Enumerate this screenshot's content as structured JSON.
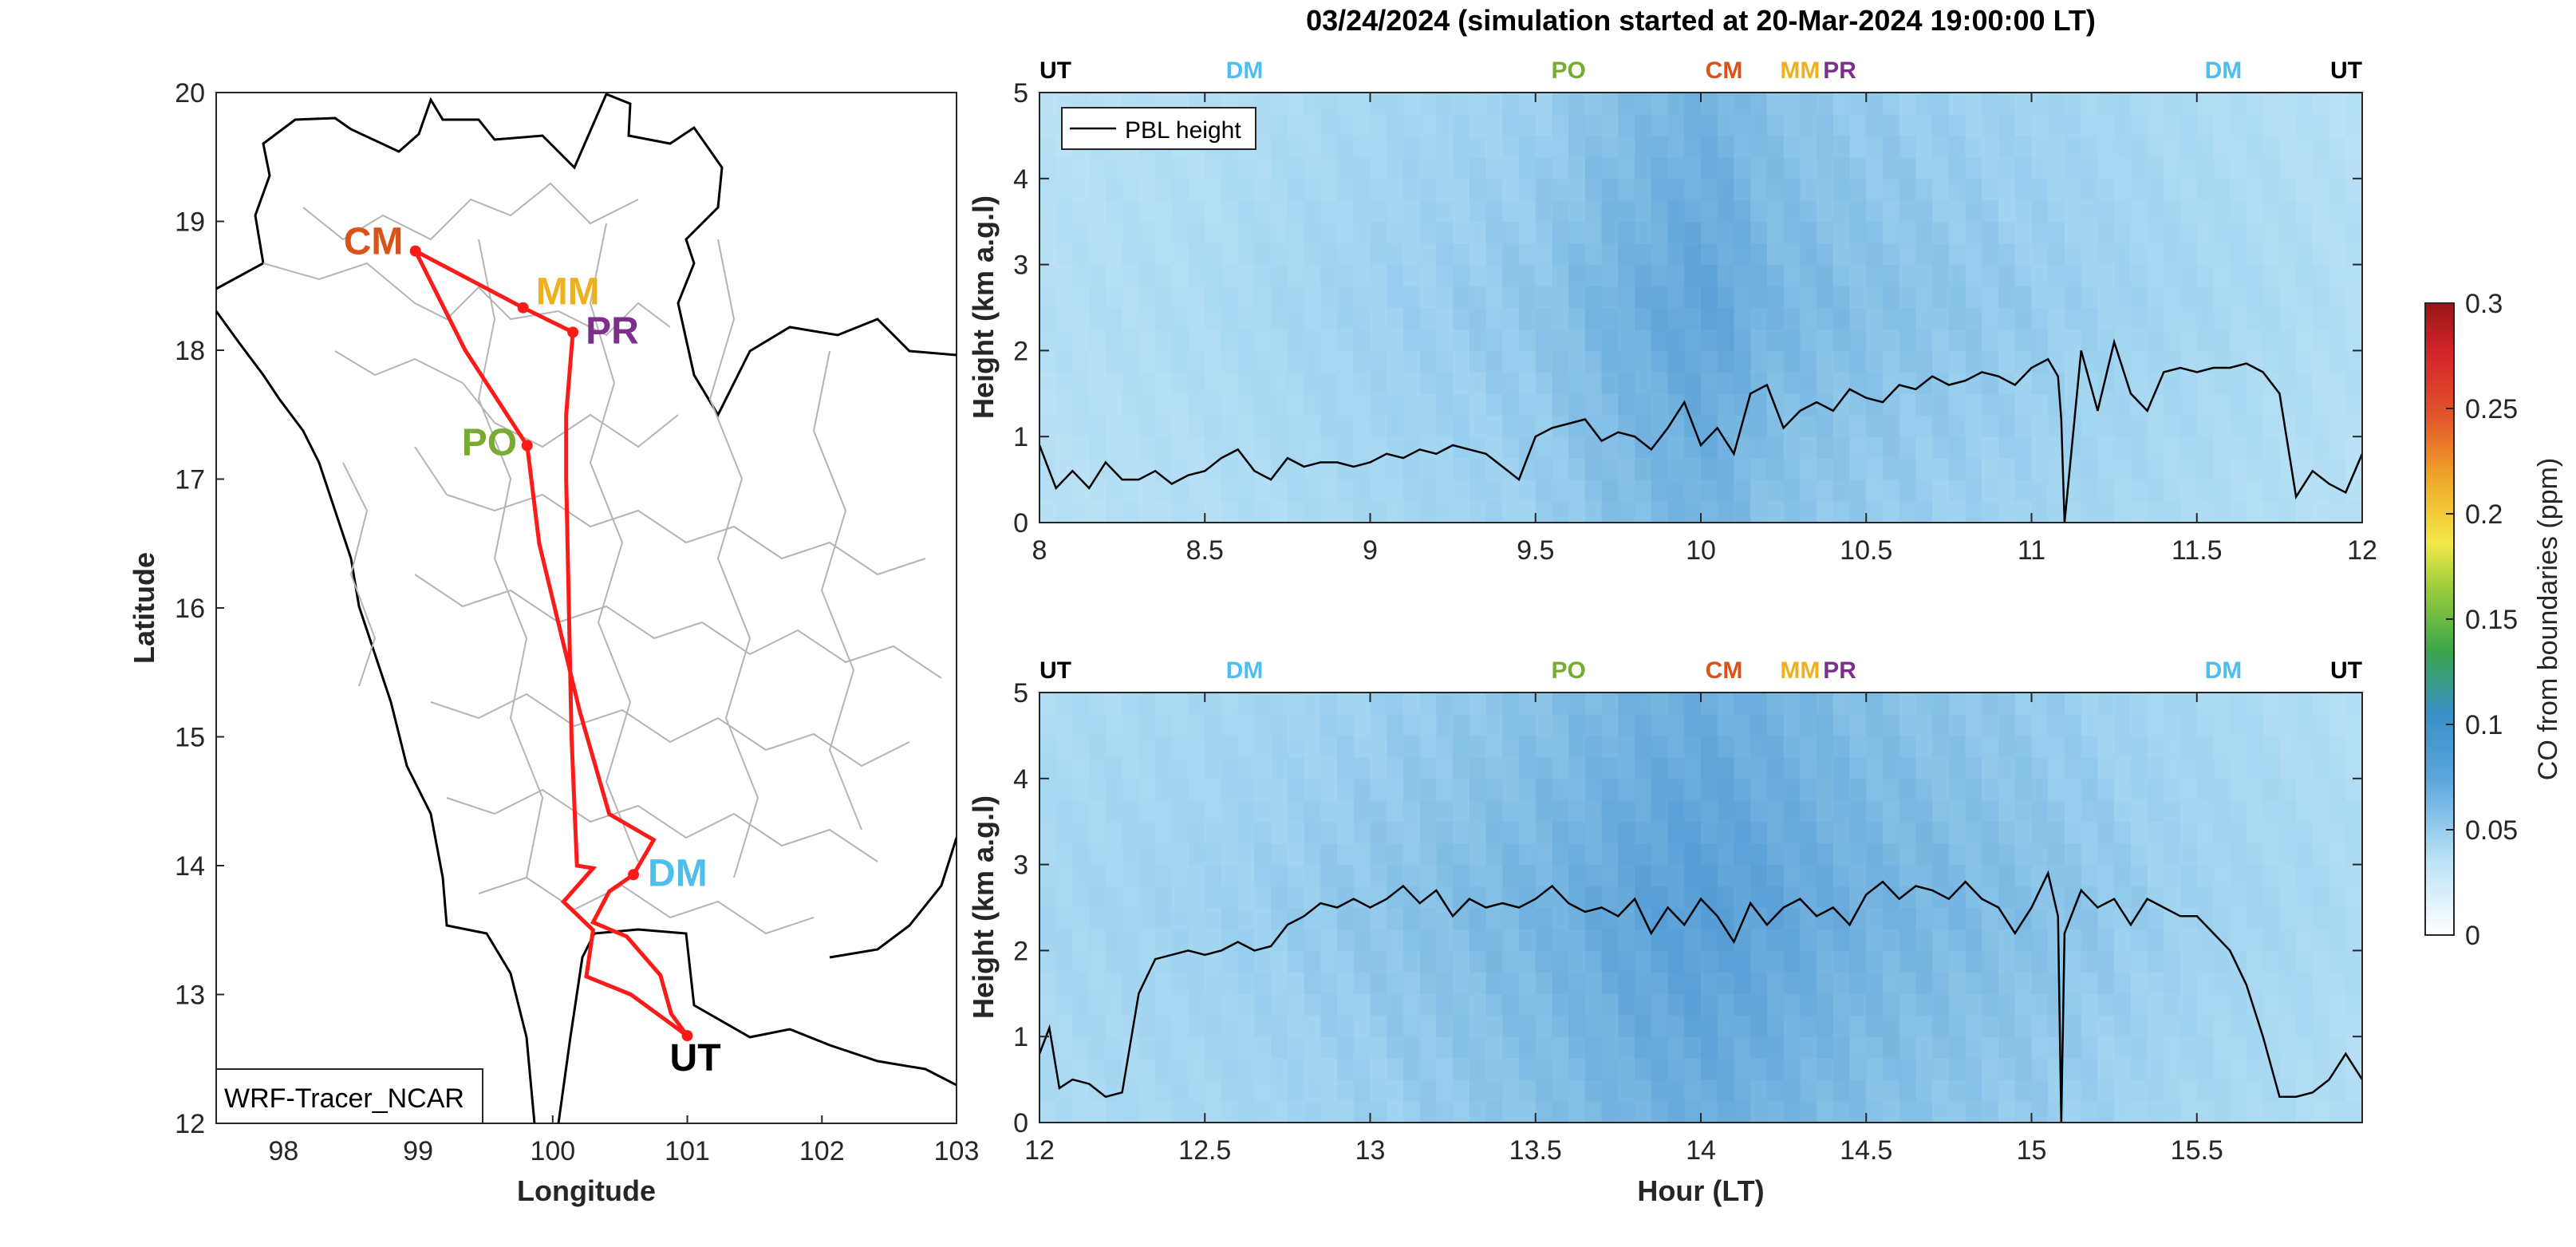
{
  "title": "03/24/2024 (simulation started at 20-Mar-2024 19:00:00 LT)",
  "colors": {
    "route": "#ff1a1a",
    "CM": "#d95319",
    "MM": "#edb120",
    "PR": "#7e2f8e",
    "PO": "#77ac30",
    "DM": "#4dbeee",
    "UT": "#000000",
    "boundaries": "#b4b4b4",
    "pbl": "#000000"
  },
  "map": {
    "xlabel": "Longitude",
    "ylabel": "Latitude",
    "xticks": [
      "98",
      "99",
      "100",
      "101",
      "102",
      "103"
    ],
    "yticks": [
      "12",
      "13",
      "14",
      "15",
      "16",
      "17",
      "18",
      "19",
      "20"
    ],
    "xlim": [
      97.5,
      103
    ],
    "ylim": [
      12,
      20
    ],
    "model_label": "WRF-Tracer_NCAR",
    "sites": [
      {
        "code": "CM",
        "lon": 98.98,
        "lat": 18.77
      },
      {
        "code": "MM",
        "lon": 99.78,
        "lat": 18.33
      },
      {
        "code": "PR",
        "lon": 100.15,
        "lat": 18.14
      },
      {
        "code": "PO",
        "lon": 99.81,
        "lat": 17.26
      },
      {
        "code": "DM",
        "lon": 100.6,
        "lat": 13.93
      },
      {
        "code": "UT",
        "lon": 101.0,
        "lat": 12.68
      }
    ],
    "flight_track": [
      [
        101.0,
        12.68
      ],
      [
        100.58,
        13.0
      ],
      [
        100.25,
        13.14
      ],
      [
        100.3,
        13.5
      ],
      [
        100.08,
        13.72
      ],
      [
        100.3,
        13.98
      ],
      [
        100.18,
        14.0
      ],
      [
        100.14,
        15.0
      ],
      [
        100.12,
        16.0
      ],
      [
        100.1,
        17.0
      ],
      [
        100.1,
        17.5
      ],
      [
        100.15,
        18.14
      ],
      [
        99.78,
        18.33
      ],
      [
        98.98,
        18.77
      ],
      [
        99.35,
        18.0
      ],
      [
        99.81,
        17.26
      ],
      [
        99.9,
        16.5
      ],
      [
        100.2,
        15.2
      ],
      [
        100.42,
        14.4
      ],
      [
        100.75,
        14.2
      ],
      [
        100.6,
        13.93
      ],
      [
        100.42,
        13.8
      ],
      [
        100.3,
        13.56
      ],
      [
        100.55,
        13.45
      ],
      [
        100.8,
        13.15
      ],
      [
        100.88,
        12.85
      ],
      [
        101.0,
        12.68
      ]
    ]
  },
  "chart_data": [
    {
      "type": "heatmap",
      "title": "03/24/2024 (simulation started at 20-Mar-2024 19:00:00 LT)",
      "xlabel": "",
      "ylabel": "Height (km a.g.l)",
      "xlim": [
        8,
        12
      ],
      "ylim": [
        0,
        5
      ],
      "xticks": [
        "8",
        "8.5",
        "9",
        "9.5",
        "10",
        "10.5",
        "11",
        "11.5",
        "12"
      ],
      "yticks": [
        "0",
        "1",
        "2",
        "3",
        "4",
        "5"
      ],
      "legend": {
        "label": "PBL height",
        "placement": "top-left"
      },
      "site_marks": [
        {
          "label": "UT",
          "x": 8.0
        },
        {
          "label": "DM",
          "x": 8.62
        },
        {
          "label": "PO",
          "x": 9.6
        },
        {
          "label": "CM",
          "x": 10.07
        },
        {
          "label": "MM",
          "x": 10.3
        },
        {
          "label": "PR",
          "x": 10.42
        },
        {
          "label": "DM",
          "x": 11.58
        },
        {
          "label": "UT",
          "x": 12.0
        }
      ],
      "co_column_mean_ppm": {
        "x": [
          8,
          8.5,
          9,
          9.5,
          9.7,
          9.9,
          10,
          10.1,
          10.2,
          10.5,
          11,
          11.5,
          12
        ],
        "values": [
          0.035,
          0.04,
          0.05,
          0.058,
          0.068,
          0.075,
          0.078,
          0.075,
          0.068,
          0.062,
          0.055,
          0.045,
          0.036
        ]
      },
      "series": [
        {
          "name": "PBL height",
          "x": [
            8.0,
            8.05,
            8.1,
            8.15,
            8.2,
            8.25,
            8.3,
            8.35,
            8.4,
            8.45,
            8.5,
            8.55,
            8.6,
            8.65,
            8.7,
            8.75,
            8.8,
            8.85,
            8.9,
            8.95,
            9.0,
            9.05,
            9.1,
            9.15,
            9.2,
            9.25,
            9.3,
            9.35,
            9.4,
            9.45,
            9.5,
            9.55,
            9.6,
            9.65,
            9.7,
            9.75,
            9.8,
            9.85,
            9.9,
            9.95,
            10.0,
            10.05,
            10.1,
            10.15,
            10.2,
            10.25,
            10.3,
            10.35,
            10.4,
            10.45,
            10.5,
            10.55,
            10.6,
            10.65,
            10.7,
            10.75,
            10.8,
            10.85,
            10.9,
            10.95,
            11.0,
            11.05,
            11.08,
            11.09,
            11.1,
            11.15,
            11.2,
            11.25,
            11.3,
            11.35,
            11.4,
            11.45,
            11.5,
            11.55,
            11.6,
            11.65,
            11.7,
            11.75,
            11.8,
            11.85,
            11.9,
            11.95,
            12.0
          ],
          "values": [
            0.9,
            0.4,
            0.6,
            0.4,
            0.7,
            0.5,
            0.5,
            0.6,
            0.45,
            0.55,
            0.6,
            0.75,
            0.85,
            0.6,
            0.5,
            0.75,
            0.65,
            0.7,
            0.7,
            0.65,
            0.7,
            0.8,
            0.75,
            0.85,
            0.8,
            0.9,
            0.85,
            0.8,
            0.65,
            0.5,
            1.0,
            1.1,
            1.15,
            1.2,
            0.95,
            1.05,
            1.0,
            0.85,
            1.1,
            1.4,
            0.9,
            1.1,
            0.8,
            1.5,
            1.6,
            1.1,
            1.3,
            1.4,
            1.3,
            1.55,
            1.45,
            1.4,
            1.6,
            1.55,
            1.7,
            1.6,
            1.65,
            1.75,
            1.7,
            1.6,
            1.8,
            1.9,
            1.7,
            1.2,
            0.0,
            2.0,
            1.3,
            2.1,
            1.5,
            1.3,
            1.75,
            1.8,
            1.75,
            1.8,
            1.8,
            1.85,
            1.75,
            1.5,
            0.3,
            0.6,
            0.45,
            0.35,
            0.8
          ]
        }
      ]
    },
    {
      "type": "heatmap",
      "title": "",
      "xlabel": "Hour (LT)",
      "ylabel": "Height (km a.g.l)",
      "xlim": [
        12,
        16
      ],
      "ylim": [
        0,
        5
      ],
      "xticks": [
        "12",
        "12.5",
        "13",
        "13.5",
        "14",
        "14.5",
        "15",
        "15.5"
      ],
      "yticks": [
        "0",
        "1",
        "2",
        "3",
        "4",
        "5"
      ],
      "site_marks": [
        {
          "label": "UT",
          "x": 12.0
        },
        {
          "label": "DM",
          "x": 12.62
        },
        {
          "label": "PO",
          "x": 13.6
        },
        {
          "label": "CM",
          "x": 14.07
        },
        {
          "label": "MM",
          "x": 14.3
        },
        {
          "label": "PR",
          "x": 14.42
        },
        {
          "label": "DM",
          "x": 15.58
        },
        {
          "label": "UT",
          "x": 16.0
        }
      ],
      "co_column_mean_ppm": {
        "x": [
          12,
          12.5,
          13,
          13.5,
          13.8,
          14,
          14.2,
          14.5,
          15,
          15.5,
          16
        ],
        "values": [
          0.045,
          0.05,
          0.058,
          0.068,
          0.078,
          0.082,
          0.078,
          0.07,
          0.062,
          0.05,
          0.04
        ]
      },
      "series": [
        {
          "name": "PBL height",
          "x": [
            12.0,
            12.03,
            12.06,
            12.1,
            12.15,
            12.2,
            12.25,
            12.3,
            12.35,
            12.4,
            12.45,
            12.5,
            12.55,
            12.6,
            12.65,
            12.7,
            12.75,
            12.8,
            12.85,
            12.9,
            12.95,
            13.0,
            13.05,
            13.1,
            13.15,
            13.2,
            13.25,
            13.3,
            13.35,
            13.4,
            13.45,
            13.5,
            13.55,
            13.6,
            13.65,
            13.7,
            13.75,
            13.8,
            13.85,
            13.9,
            13.95,
            14.0,
            14.05,
            14.1,
            14.15,
            14.2,
            14.25,
            14.3,
            14.35,
            14.4,
            14.45,
            14.5,
            14.55,
            14.6,
            14.65,
            14.7,
            14.75,
            14.8,
            14.85,
            14.9,
            14.95,
            15.0,
            15.05,
            15.08,
            15.09,
            15.1,
            15.15,
            15.2,
            15.25,
            15.3,
            15.35,
            15.4,
            15.45,
            15.5,
            15.55,
            15.6,
            15.65,
            15.7,
            15.75,
            15.8,
            15.85,
            15.9,
            15.95,
            16.0
          ],
          "values": [
            0.8,
            1.1,
            0.4,
            0.5,
            0.45,
            0.3,
            0.35,
            1.5,
            1.9,
            1.95,
            2.0,
            1.95,
            2.0,
            2.1,
            2.0,
            2.05,
            2.3,
            2.4,
            2.55,
            2.5,
            2.6,
            2.5,
            2.6,
            2.75,
            2.55,
            2.7,
            2.4,
            2.6,
            2.5,
            2.55,
            2.5,
            2.6,
            2.75,
            2.55,
            2.45,
            2.5,
            2.4,
            2.6,
            2.2,
            2.5,
            2.3,
            2.6,
            2.4,
            2.1,
            2.55,
            2.3,
            2.5,
            2.6,
            2.4,
            2.5,
            2.3,
            2.65,
            2.8,
            2.6,
            2.75,
            2.7,
            2.6,
            2.8,
            2.6,
            2.5,
            2.2,
            2.5,
            2.9,
            2.4,
            0.0,
            2.2,
            2.7,
            2.5,
            2.6,
            2.3,
            2.6,
            2.5,
            2.4,
            2.4,
            2.2,
            2.0,
            1.6,
            1.0,
            0.3,
            0.3,
            0.35,
            0.5,
            0.8,
            0.5
          ]
        }
      ]
    }
  ],
  "colorbar": {
    "label": "CO from boundaries (ppm)",
    "ticks": [
      "0",
      "0.05",
      "0.1",
      "0.15",
      "0.2",
      "0.25",
      "0.3"
    ],
    "range": [
      0,
      0.3
    ]
  }
}
